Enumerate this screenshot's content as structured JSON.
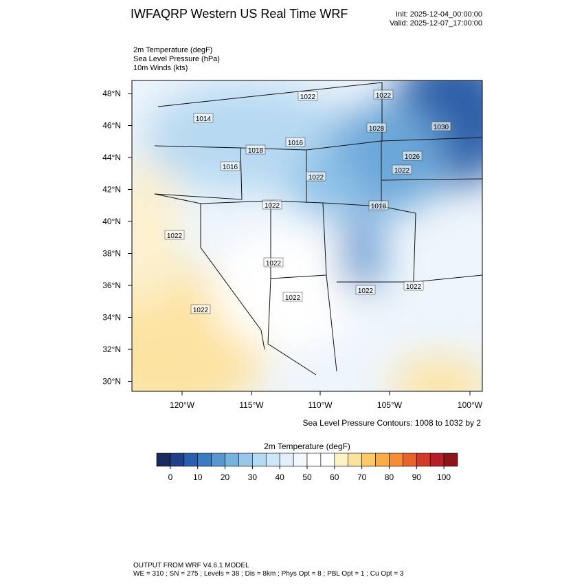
{
  "header": {
    "title": "IWFAQRP Western US Real Time WRF",
    "init": "Init: 2025-12-04_00:00:00",
    "valid": "Valid: 2025-12-07_17:00:00"
  },
  "fields": [
    "2m Temperature   (degF)",
    "Sea Level Pressure   (hPa)",
    "10m Winds   (kts)"
  ],
  "map": {
    "lat_labels": [
      "48°N",
      "46°N",
      "44°N",
      "42°N",
      "40°N",
      "38°N",
      "36°N",
      "34°N",
      "32°N",
      "30°N"
    ],
    "lon_labels": [
      "120°W",
      "115°W",
      "110°W",
      "105°W",
      "100°W"
    ],
    "contour_labels": [
      "1014",
      "1022",
      "1016",
      "1018",
      "1016",
      "1030",
      "1028",
      "1022",
      "1026",
      "1022",
      "1022",
      "1018",
      "1022",
      "1022",
      "1022",
      "1022",
      "1022",
      "1022",
      "1022"
    ],
    "contour_note": "Sea Level Pressure Contours: 1008 to 1032 by 2"
  },
  "colorbar": {
    "title": "2m Temperature  (degF)",
    "lim": [
      -5,
      105
    ],
    "ticks": [
      0,
      10,
      20,
      30,
      40,
      50,
      60,
      70,
      80,
      90,
      100
    ],
    "colors": [
      "#1b2a5c",
      "#213f88",
      "#2a5fae",
      "#3b7dc2",
      "#5597d1",
      "#76b1df",
      "#97c8eb",
      "#b5daf3",
      "#cde6f8",
      "#e2f0fb",
      "#f2f8fd",
      "#ffffff",
      "#ffffff",
      "#fef3c6",
      "#fde29a",
      "#fcc86a",
      "#f9ac48",
      "#f48d36",
      "#e9632c",
      "#d33a29",
      "#b61f25",
      "#8c151a"
    ]
  },
  "footer": {
    "line1": "OUTPUT FROM WRF V4.6.1 MODEL",
    "line2": "WE = 310 ; SN = 275 ; Levels = 38 ; Dis = 8km ; Phys Opt = 8 ; PBL Opt = 1 ; Cu Opt = 3"
  }
}
